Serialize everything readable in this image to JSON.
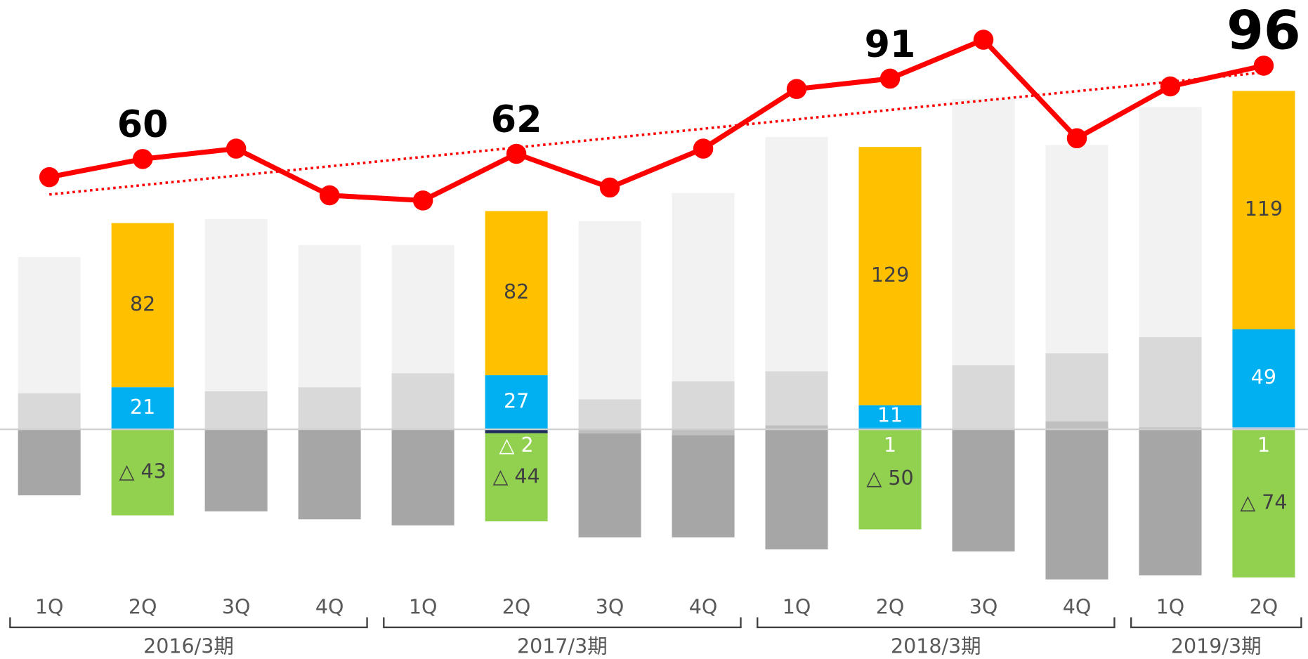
{
  "chart_data": {
    "type": "combo",
    "groups": [
      {
        "label": "2016/3期",
        "categories": [
          "1Q",
          "2Q",
          "3Q",
          "4Q"
        ]
      },
      {
        "label": "2017/3期",
        "categories": [
          "1Q",
          "2Q",
          "3Q",
          "4Q"
        ]
      },
      {
        "label": "2018/3期",
        "categories": [
          "1Q",
          "2Q",
          "3Q",
          "4Q"
        ]
      },
      {
        "label": "2019/3期",
        "categories": [
          "1Q",
          "2Q"
        ]
      }
    ],
    "ylim": [
      -80,
      214
    ],
    "y2lim": [
      -106,
      121
    ],
    "series": [
      {
        "values": [
          0,
          0,
          0,
          0,
          0,
          -2,
          -2,
          -3,
          2,
          1,
          0,
          4,
          1,
          1
        ],
        "colors": [
          "#bfbfbf",
          "#bfbfbf",
          "#bfbfbf",
          "#bfbfbf",
          "#bfbfbf",
          "#1f2d5a",
          "#bfbfbf",
          "#bfbfbf",
          "#bfbfbf",
          "#00b0f0",
          "#bfbfbf",
          "#bfbfbf",
          "#bfbfbf",
          "#9dc3e6"
        ],
        "label_color": "#ffffff",
        "value_labels": [
          null,
          null,
          null,
          null,
          null,
          "△ 2",
          null,
          null,
          null,
          "1",
          null,
          null,
          null,
          "1"
        ]
      },
      {
        "values": [
          18,
          21,
          19,
          21,
          28,
          27,
          15,
          24,
          27,
          11,
          32,
          34,
          45,
          49
        ],
        "colors": [
          "#d9d9d9",
          "#00b0f0",
          "#d9d9d9",
          "#d9d9d9",
          "#d9d9d9",
          "#00b0f0",
          "#d9d9d9",
          "#d9d9d9",
          "#d9d9d9",
          "#00b0f0",
          "#d9d9d9",
          "#d9d9d9",
          "#d9d9d9",
          "#00b0f0"
        ],
        "label_color": "#ffffff",
        "value_labels": [
          null,
          "21",
          null,
          null,
          null,
          "27",
          null,
          null,
          null,
          "11",
          null,
          null,
          null,
          "49"
        ]
      },
      {
        "values": [
          68,
          82,
          86,
          71,
          64,
          82,
          89,
          94,
          117,
          129,
          133,
          104,
          115,
          119
        ],
        "colors": [
          "#f2f2f2",
          "#ffc000",
          "#f2f2f2",
          "#f2f2f2",
          "#f2f2f2",
          "#ffc000",
          "#f2f2f2",
          "#f2f2f2",
          "#f2f2f2",
          "#ffc000",
          "#f2f2f2",
          "#f2f2f2",
          "#f2f2f2",
          "#ffc000"
        ],
        "label_color": "#404040",
        "value_labels": [
          null,
          "82",
          null,
          null,
          null,
          "82",
          null,
          null,
          null,
          "129",
          null,
          null,
          null,
          "119"
        ]
      },
      {
        "values": [
          -33,
          -43,
          -41,
          -45,
          -48,
          -44,
          -52,
          -51,
          -60,
          -50,
          -61,
          -75,
          -73,
          -74
        ],
        "colors": [
          "#a6a6a6",
          "#92d050",
          "#a6a6a6",
          "#a6a6a6",
          "#a6a6a6",
          "#92d050",
          "#a6a6a6",
          "#a6a6a6",
          "#a6a6a6",
          "#92d050",
          "#a6a6a6",
          "#a6a6a6",
          "#a6a6a6",
          "#92d050"
        ],
        "label_color": "#404040",
        "value_labels": [
          null,
          "△ 43",
          null,
          null,
          null,
          "△ 44",
          null,
          null,
          null,
          "△ 50",
          null,
          null,
          null,
          "△ 74"
        ]
      }
    ],
    "line": {
      "axis": "y2",
      "color": "#ff0000",
      "trendline": true,
      "values": [
        53,
        60,
        64,
        46,
        44,
        62,
        49,
        64,
        87,
        91,
        106,
        68,
        88,
        96
      ],
      "value_labels": [
        null,
        "60",
        null,
        null,
        null,
        "62",
        null,
        null,
        null,
        "91",
        null,
        null,
        null,
        "96"
      ]
    }
  }
}
